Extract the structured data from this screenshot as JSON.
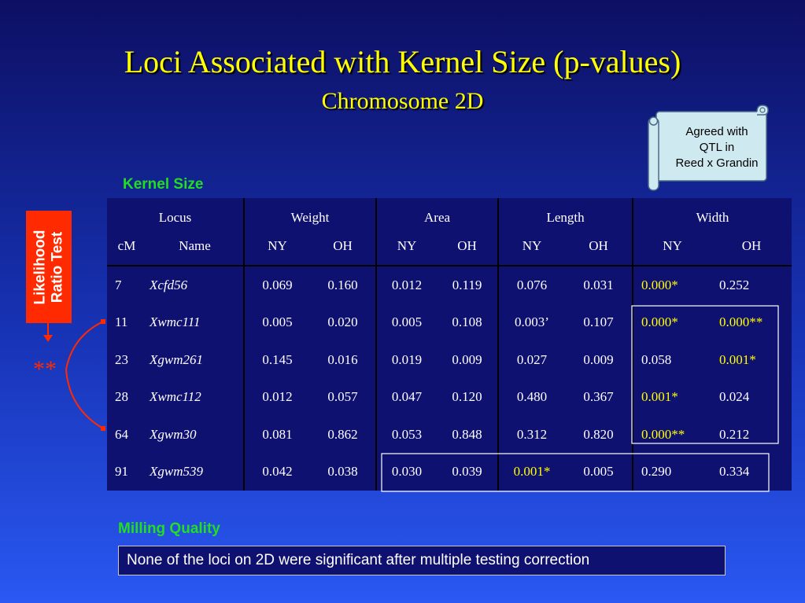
{
  "title": "Loci Associated with Kernel Size (p-values)",
  "subtitle": "Chromosome 2D",
  "scroll_note": {
    "line1": "Agreed with",
    "line2": "QTL in",
    "line3": "Reed x Grandin"
  },
  "kernel_label": "Kernel Size",
  "likelihood_box": {
    "line1": "Likelihood",
    "line2": "Ratio Test"
  },
  "asterisks": "**",
  "table": {
    "header": {
      "locus": "Locus",
      "weight": "Weight",
      "area": "Area",
      "length": "Length",
      "width": "Width"
    },
    "subheader": {
      "cm": "cM",
      "name": "Name",
      "ny": "NY",
      "oh": "OH"
    },
    "rows": [
      {
        "cm": "7",
        "name": "Xcfd56",
        "weight_ny": "0.069",
        "weight_oh": "0.160",
        "area_ny": "0.012",
        "area_oh": "0.119",
        "length_ny": "0.076",
        "length_oh": "0.031",
        "width_ny": "0.000*",
        "width_oh": "0.252"
      },
      {
        "cm": "11",
        "name": "Xwmc111",
        "weight_ny": "0.005",
        "weight_oh": "0.020",
        "area_ny": "0.005",
        "area_oh": "0.108",
        "length_ny": "0.003’",
        "length_oh": "0.107",
        "width_ny": "0.000*",
        "width_oh": "0.000**"
      },
      {
        "cm": "23",
        "name": "Xgwm261",
        "weight_ny": "0.145",
        "weight_oh": "0.016",
        "area_ny": "0.019",
        "area_oh": "0.009",
        "length_ny": "0.027",
        "length_oh": "0.009",
        "width_ny": "0.058",
        "width_oh": "0.001*"
      },
      {
        "cm": "28",
        "name": "Xwmc112",
        "weight_ny": "0.012",
        "weight_oh": "0.057",
        "area_ny": "0.047",
        "area_oh": "0.120",
        "length_ny": "0.480",
        "length_oh": "0.367",
        "width_ny": "0.001*",
        "width_oh": "0.024"
      },
      {
        "cm": "64",
        "name": "Xgwm30",
        "weight_ny": "0.081",
        "weight_oh": "0.862",
        "area_ny": "0.053",
        "area_oh": "0.848",
        "length_ny": "0.312",
        "length_oh": "0.820",
        "width_ny": "0.000**",
        "width_oh": "0.212"
      },
      {
        "cm": "91",
        "name": "Xgwm539",
        "weight_ny": "0.042",
        "weight_oh": "0.038",
        "area_ny": "0.030",
        "area_oh": "0.039",
        "length_ny": "0.001*",
        "length_oh": "0.005",
        "width_ny": "0.290",
        "width_oh": "0.334"
      }
    ]
  },
  "milling_label": "Milling Quality",
  "milling_note": "None of the loci on 2D were significant after multiple testing correction",
  "colors": {
    "title": "#ffff00",
    "section_label": "#22dd22",
    "table_bg": "#0f1170",
    "highlight_value": "#ffff00",
    "likelihood_box": "#ff2a00",
    "scroll_fill": "#cfe9f0",
    "connector": "#ff2a00"
  }
}
